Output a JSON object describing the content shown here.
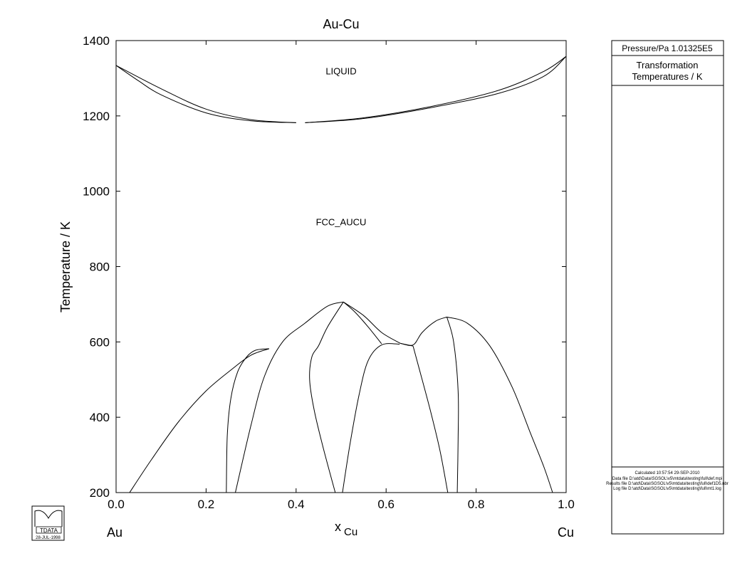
{
  "chart_data": {
    "type": "line",
    "title": "Au-Cu",
    "xlabel": "x",
    "xlabel_sub": "Cu",
    "ylabel": "Temperature / K",
    "xlim": [
      0.0,
      1.0
    ],
    "ylim": [
      200,
      1400
    ],
    "x_ticks": [
      "0.0",
      "0.2",
      "0.4",
      "0.6",
      "0.8",
      "1.0"
    ],
    "y_ticks": [
      "200",
      "400",
      "600",
      "800",
      "1000",
      "1200",
      "1400"
    ],
    "grid": false,
    "endpoint_left": "Au",
    "endpoint_right": "Cu",
    "region_labels": [
      {
        "text": "LIQUID",
        "x": 0.5,
        "y": 1310
      },
      {
        "text": "FCC_AUCU",
        "x": 0.5,
        "y": 910
      }
    ],
    "series": [
      {
        "values": [
          [
            0.0,
            1334
          ],
          [
            0.1,
            1272
          ],
          [
            0.2,
            1218
          ],
          [
            0.3,
            1190
          ],
          [
            0.4,
            1182
          ]
        ]
      },
      {
        "values": [
          [
            0.0,
            1334
          ],
          [
            0.05,
            1293
          ],
          [
            0.1,
            1256
          ],
          [
            0.2,
            1208
          ],
          [
            0.3,
            1187
          ],
          [
            0.4,
            1182
          ]
        ]
      },
      {
        "values": [
          [
            0.42,
            1182
          ],
          [
            0.55,
            1195
          ],
          [
            0.7,
            1225
          ],
          [
            0.85,
            1268
          ],
          [
            0.95,
            1318
          ],
          [
            1.0,
            1358
          ]
        ]
      },
      {
        "values": [
          [
            0.42,
            1182
          ],
          [
            0.55,
            1193
          ],
          [
            0.7,
            1222
          ],
          [
            0.85,
            1260
          ],
          [
            0.95,
            1305
          ],
          [
            1.0,
            1358
          ]
        ]
      },
      {
        "values": [
          [
            0.03,
            200
          ],
          [
            0.08,
            290
          ],
          [
            0.14,
            390
          ],
          [
            0.2,
            470
          ],
          [
            0.26,
            530
          ],
          [
            0.3,
            565
          ],
          [
            0.34,
            582
          ]
        ]
      },
      {
        "values": [
          [
            0.245,
            200
          ],
          [
            0.247,
            350
          ],
          [
            0.255,
            450
          ],
          [
            0.27,
            520
          ],
          [
            0.29,
            560
          ],
          [
            0.31,
            578
          ],
          [
            0.34,
            582
          ]
        ]
      },
      {
        "values": [
          [
            0.265,
            200
          ],
          [
            0.3,
            380
          ],
          [
            0.33,
            510
          ],
          [
            0.37,
            600
          ],
          [
            0.42,
            650
          ],
          [
            0.47,
            695
          ],
          [
            0.505,
            706
          ]
        ]
      },
      {
        "values": [
          [
            0.487,
            200
          ],
          [
            0.46,
            320
          ],
          [
            0.44,
            420
          ],
          [
            0.43,
            500
          ],
          [
            0.435,
            560
          ],
          [
            0.45,
            590
          ],
          [
            0.47,
            640
          ],
          [
            0.505,
            706
          ]
        ]
      },
      {
        "values": [
          [
            0.505,
            706
          ],
          [
            0.55,
            670
          ],
          [
            0.59,
            625
          ],
          [
            0.632,
            596
          ]
        ]
      },
      {
        "values": [
          [
            0.505,
            706
          ],
          [
            0.53,
            680
          ],
          [
            0.56,
            640
          ],
          [
            0.59,
            595
          ]
        ]
      },
      {
        "values": [
          [
            0.503,
            200
          ],
          [
            0.52,
            330
          ],
          [
            0.54,
            460
          ],
          [
            0.56,
            550
          ],
          [
            0.59,
            592
          ],
          [
            0.63,
            594
          ]
        ]
      },
      {
        "values": [
          [
            0.632,
            596
          ],
          [
            0.66,
            592
          ],
          [
            0.68,
            625
          ],
          [
            0.71,
            655
          ],
          [
            0.735,
            666
          ]
        ]
      },
      {
        "values": [
          [
            0.632,
            596
          ],
          [
            0.66,
            589
          ]
        ]
      },
      {
        "values": [
          [
            0.66,
            589
          ],
          [
            0.68,
            500
          ],
          [
            0.7,
            410
          ],
          [
            0.72,
            310
          ],
          [
            0.737,
            200
          ]
        ]
      },
      {
        "values": [
          [
            0.735,
            666
          ],
          [
            0.75,
            600
          ],
          [
            0.76,
            470
          ],
          [
            0.76,
            340
          ],
          [
            0.758,
            200
          ]
        ]
      },
      {
        "values": [
          [
            0.735,
            666
          ],
          [
            0.78,
            650
          ],
          [
            0.83,
            590
          ],
          [
            0.88,
            480
          ],
          [
            0.92,
            360
          ],
          [
            0.95,
            270
          ],
          [
            0.97,
            200
          ]
        ]
      }
    ]
  },
  "info_panel": {
    "pressure_label": "Pressure/Pa  1.01325E5",
    "heading_line1": "Transformation",
    "heading_line2": "Temperatures / K",
    "calculated": "Calculated  10:57:54  29-SEP-2010",
    "files": [
      "Data file  D:\\atd\\Data\\SGSOL\\v5\\mtdata\\testing\\full\\def.mpi",
      "Results file  D:\\atd\\Data\\SGSOL\\v5\\mtdata\\testing\\full\\def1D5.nbr",
      "Log file  D:\\atd\\Data\\SGSOL\\v5\\mtdata\\testing\\full\\mt1.log"
    ]
  },
  "logo": {
    "text": "TDATA",
    "date": "28-JUL-1998"
  }
}
